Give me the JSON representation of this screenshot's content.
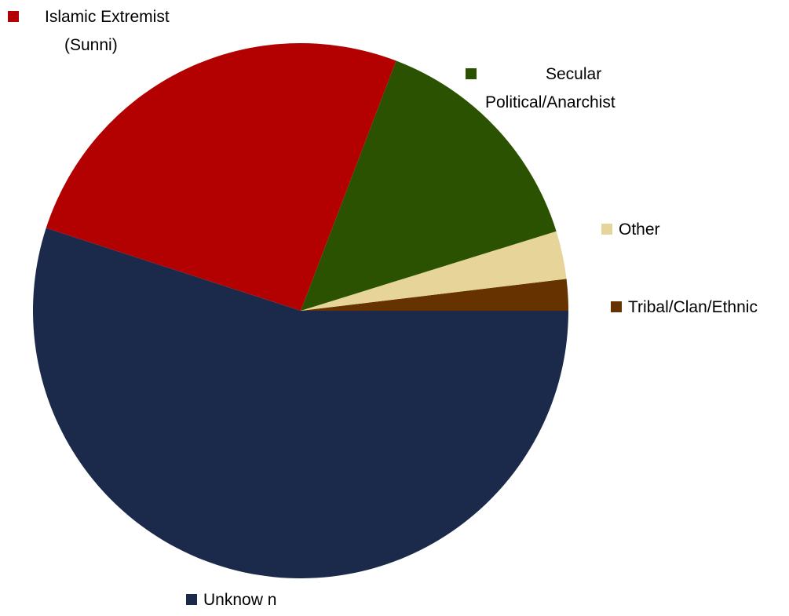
{
  "chart_data": {
    "type": "pie",
    "title": "",
    "start_angle_deg": 0,
    "direction": "counterclockwise",
    "legend": "labels beside slices",
    "slices": [
      {
        "label": "Tribal/Clan/Ethnic",
        "label_lines": [
          "Tribal/Clan/Ethnic"
        ],
        "value": 1.9,
        "color": "#663300"
      },
      {
        "label": "Other",
        "label_lines": [
          "Other"
        ],
        "value": 2.9,
        "color": "#e6d498"
      },
      {
        "label": "Secular Political/Anarchist",
        "label_lines": [
          "Secular",
          "Political/Anarchist"
        ],
        "value": 14.4,
        "color": "#2b5200"
      },
      {
        "label": "Islamic Extremist (Sunni)",
        "label_lines": [
          "Islamic Extremist",
          "(Sunni)"
        ],
        "value": 25.8,
        "color": "#b30000"
      },
      {
        "label": "Unknow n",
        "label_lines": [
          "Unknow n"
        ],
        "value": 55.0,
        "color": "#1b2a4a"
      }
    ]
  }
}
